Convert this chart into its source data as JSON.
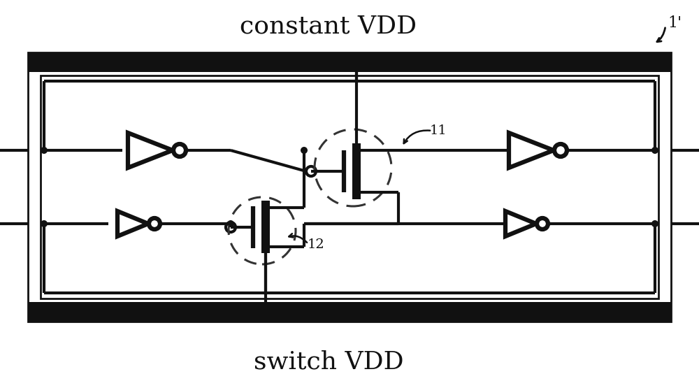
{
  "title_top": "constant VDD",
  "title_bottom": "switch VDD",
  "label_11": "11",
  "label_12": "12",
  "label_ref": "1'",
  "bg_color": "#ffffff",
  "line_color": "#111111",
  "fig_width": 10.0,
  "fig_height": 5.55,
  "dpi": 100,
  "lw_rail": 18,
  "lw_thick": 4.5,
  "lw_med": 3.0,
  "lw_thin": 2.0
}
